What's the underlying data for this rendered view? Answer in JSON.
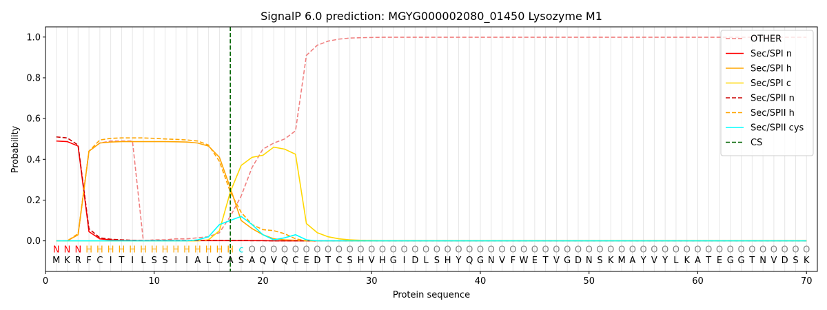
{
  "chart_data": {
    "type": "line",
    "title": "SignalP 6.0 prediction: MGYG000002080_01450 Lysozyme M1",
    "xlabel": "Protein sequence",
    "ylabel": "Probability",
    "xlim": [
      0,
      71
    ],
    "ylim": [
      -0.15,
      1.05
    ],
    "xticks": [
      0,
      10,
      20,
      30,
      40,
      50,
      60,
      70
    ],
    "yticks": [
      "0.0",
      "0.2",
      "0.4",
      "0.6",
      "0.8",
      "1.0"
    ],
    "ytick_values": [
      0.0,
      0.2,
      0.4,
      0.6,
      0.8,
      1.0
    ],
    "grid": "vertical lines at each residue",
    "legend_position": "top-right",
    "sequence": [
      "M",
      "K",
      "R",
      "F",
      "C",
      "I",
      "T",
      "I",
      "L",
      "S",
      "S",
      "I",
      "I",
      "A",
      "L",
      "C",
      "A",
      "S",
      "A",
      "Q",
      "V",
      "Q",
      "C",
      "E",
      "D",
      "T",
      "C",
      "S",
      "H",
      "V",
      "H",
      "G",
      "I",
      "D",
      "L",
      "S",
      "H",
      "Y",
      "Q",
      "G",
      "N",
      "V",
      "F",
      "W",
      "E",
      "T",
      "V",
      "G",
      "D",
      "N",
      "S",
      "K",
      "M",
      "A",
      "Y",
      "V",
      "Y",
      "L",
      "K",
      "A",
      "T",
      "E",
      "G",
      "G",
      "T",
      "N",
      "V",
      "D",
      "S",
      "K"
    ],
    "regions": [
      "N",
      "N",
      "N",
      "H",
      "H",
      "H",
      "H",
      "H",
      "H",
      "H",
      "H",
      "H",
      "H",
      "H",
      "H",
      "H",
      "H",
      "c",
      "O",
      "O",
      "O",
      "O",
      "O",
      "O",
      "O",
      "O",
      "O",
      "O",
      "O",
      "O",
      "O",
      "O",
      "O",
      "O",
      "O",
      "O",
      "O",
      "O",
      "O",
      "O",
      "O",
      "O",
      "O",
      "O",
      "O",
      "O",
      "O",
      "O",
      "O",
      "O",
      "O",
      "O",
      "O",
      "O",
      "O",
      "O",
      "O",
      "O",
      "O",
      "O",
      "O",
      "O",
      "O",
      "O",
      "O",
      "O",
      "O",
      "O",
      "O",
      "O"
    ],
    "region_colors": {
      "N": "#ff0000",
      "H": "#ffa500",
      "c": "#00e5e5",
      "O": "#808080"
    },
    "cs_position": 17,
    "series": [
      {
        "name": "OTHER",
        "color": "#f08080",
        "dash": "6,3",
        "values": [
          0.0,
          0.0,
          0.03,
          0.44,
          0.48,
          0.49,
          0.49,
          0.49,
          0.0,
          0.005,
          0.005,
          0.01,
          0.01,
          0.015,
          0.02,
          0.04,
          0.12,
          0.22,
          0.36,
          0.45,
          0.48,
          0.5,
          0.54,
          0.91,
          0.96,
          0.98,
          0.99,
          0.995,
          0.997,
          0.998,
          0.999,
          0.999,
          0.999,
          0.999,
          0.999,
          0.999,
          0.999,
          0.999,
          0.999,
          0.999,
          0.999,
          0.999,
          0.999,
          0.999,
          0.999,
          0.999,
          0.999,
          0.999,
          0.999,
          0.999,
          0.999,
          0.999,
          0.999,
          0.999,
          0.999,
          0.999,
          0.999,
          0.999,
          0.999,
          0.999,
          0.999,
          0.999,
          0.999,
          0.999,
          0.999,
          0.999,
          0.999,
          0.999,
          0.999,
          0.999
        ]
      },
      {
        "name": "Sec/SPI n",
        "color": "#ff0000",
        "dash": "",
        "values": [
          0.49,
          0.487,
          0.465,
          0.045,
          0.01,
          0.005,
          0.003,
          0.002,
          0.001,
          0.001,
          0.001,
          0.001,
          0.001,
          0.001,
          0.001,
          0.001,
          0.001,
          0.001,
          0.001,
          0.001,
          0.0,
          0.0,
          0.0,
          0.0,
          0.0,
          0.0,
          0.0,
          0.0,
          0.0,
          0.0,
          0.0,
          0.0,
          0.0,
          0.0,
          0.0,
          0.0,
          0.0,
          0.0,
          0.0,
          0.0,
          0.0,
          0.0,
          0.0,
          0.0,
          0.0,
          0.0,
          0.0,
          0.0,
          0.0,
          0.0,
          0.0,
          0.0,
          0.0,
          0.0,
          0.0,
          0.0,
          0.0,
          0.0,
          0.0,
          0.0,
          0.0,
          0.0,
          0.0,
          0.0,
          0.0,
          0.0,
          0.0,
          0.0,
          0.0,
          0.0
        ]
      },
      {
        "name": "Sec/SPI h",
        "color": "#ffa500",
        "dash": "",
        "values": [
          0.0,
          0.0,
          0.03,
          0.44,
          0.48,
          0.485,
          0.487,
          0.487,
          0.487,
          0.487,
          0.487,
          0.486,
          0.485,
          0.48,
          0.465,
          0.41,
          0.26,
          0.1,
          0.06,
          0.03,
          0.01,
          0.005,
          0.003,
          0.0,
          0.0,
          0.0,
          0.0,
          0.0,
          0.0,
          0.0,
          0.0,
          0.0,
          0.0,
          0.0,
          0.0,
          0.0,
          0.0,
          0.0,
          0.0,
          0.0,
          0.0,
          0.0,
          0.0,
          0.0,
          0.0,
          0.0,
          0.0,
          0.0,
          0.0,
          0.0,
          0.0,
          0.0,
          0.0,
          0.0,
          0.0,
          0.0,
          0.0,
          0.0,
          0.0,
          0.0,
          0.0,
          0.0,
          0.0,
          0.0,
          0.0,
          0.0,
          0.0,
          0.0,
          0.0,
          0.0
        ]
      },
      {
        "name": "Sec/SPI c",
        "color": "#ffd700",
        "dash": "",
        "values": [
          0.0,
          0.0,
          0.0,
          0.0,
          0.0,
          0.0,
          0.0,
          0.0,
          0.0,
          0.0,
          0.0,
          0.0,
          0.0,
          0.0,
          0.005,
          0.05,
          0.24,
          0.37,
          0.41,
          0.42,
          0.46,
          0.45,
          0.425,
          0.085,
          0.04,
          0.02,
          0.01,
          0.005,
          0.003,
          0.002,
          0.001,
          0.001,
          0.001,
          0.001,
          0.001,
          0.001,
          0.001,
          0.001,
          0.001,
          0.001,
          0.001,
          0.001,
          0.001,
          0.001,
          0.001,
          0.001,
          0.001,
          0.001,
          0.001,
          0.001,
          0.001,
          0.001,
          0.001,
          0.001,
          0.001,
          0.001,
          0.001,
          0.001,
          0.001,
          0.001,
          0.001,
          0.001,
          0.001,
          0.001,
          0.001,
          0.001,
          0.001,
          0.001,
          0.001,
          0.001
        ]
      },
      {
        "name": "Sec/SPII n",
        "color": "#cc0000",
        "dash": "6,3",
        "values": [
          0.51,
          0.505,
          0.47,
          0.06,
          0.015,
          0.008,
          0.005,
          0.003,
          0.002,
          0.002,
          0.002,
          0.002,
          0.002,
          0.002,
          0.002,
          0.002,
          0.002,
          0.002,
          0.001,
          0.001,
          0.0,
          0.0,
          0.0,
          0.0,
          0.0,
          0.0,
          0.0,
          0.0,
          0.0,
          0.0,
          0.0,
          0.0,
          0.0,
          0.0,
          0.0,
          0.0,
          0.0,
          0.0,
          0.0,
          0.0,
          0.0,
          0.0,
          0.0,
          0.0,
          0.0,
          0.0,
          0.0,
          0.0,
          0.0,
          0.0,
          0.0,
          0.0,
          0.0,
          0.0,
          0.0,
          0.0,
          0.0,
          0.0,
          0.0,
          0.0,
          0.0,
          0.0,
          0.0,
          0.0,
          0.0,
          0.0,
          0.0,
          0.0,
          0.0,
          0.0
        ]
      },
      {
        "name": "Sec/SPII h",
        "color": "#ffa500",
        "dash": "6,3",
        "values": [
          0.0,
          0.0,
          0.035,
          0.44,
          0.495,
          0.503,
          0.505,
          0.505,
          0.505,
          0.503,
          0.5,
          0.498,
          0.495,
          0.49,
          0.47,
          0.39,
          0.24,
          0.14,
          0.08,
          0.055,
          0.05,
          0.035,
          0.01,
          0.0,
          0.0,
          0.0,
          0.0,
          0.0,
          0.0,
          0.0,
          0.0,
          0.0,
          0.0,
          0.0,
          0.0,
          0.0,
          0.0,
          0.0,
          0.0,
          0.0,
          0.0,
          0.0,
          0.0,
          0.0,
          0.0,
          0.0,
          0.0,
          0.0,
          0.0,
          0.0,
          0.0,
          0.0,
          0.0,
          0.0,
          0.0,
          0.0,
          0.0,
          0.0,
          0.0,
          0.0,
          0.0,
          0.0,
          0.0,
          0.0,
          0.0,
          0.0,
          0.0,
          0.0,
          0.0,
          0.0
        ]
      },
      {
        "name": "Sec/SPII cys",
        "color": "#00ffff",
        "dash": "",
        "values": [
          0.0,
          0.0,
          0.0,
          0.0,
          0.0,
          0.0,
          0.0,
          0.0,
          0.0,
          0.0,
          0.0,
          0.0,
          0.0,
          0.005,
          0.02,
          0.08,
          0.1,
          0.12,
          0.08,
          0.03,
          0.005,
          0.015,
          0.03,
          0.005,
          0.0,
          0.0,
          0.0,
          0.0,
          0.0,
          0.0,
          0.0,
          0.0,
          0.0,
          0.0,
          0.0,
          0.0,
          0.0,
          0.0,
          0.0,
          0.0,
          0.0,
          0.0,
          0.0,
          0.0,
          0.0,
          0.0,
          0.0,
          0.0,
          0.0,
          0.0,
          0.0,
          0.0,
          0.0,
          0.0,
          0.0,
          0.0,
          0.0,
          0.0,
          0.0,
          0.0,
          0.0,
          0.0,
          0.0,
          0.0,
          0.0,
          0.0,
          0.0,
          0.0,
          0.0,
          0.0
        ]
      }
    ],
    "cs_legend": {
      "name": "CS",
      "color": "#006400",
      "dash": "6,3"
    }
  }
}
